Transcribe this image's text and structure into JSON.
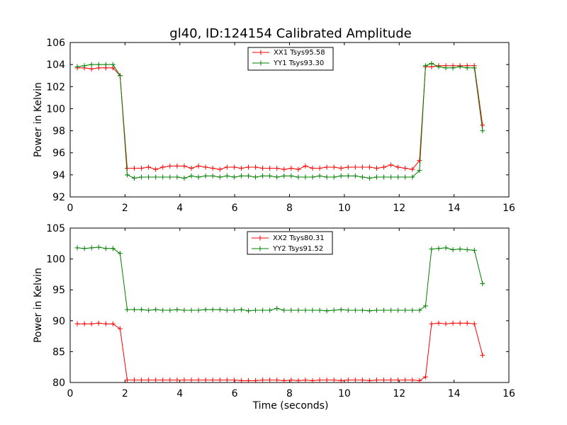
{
  "title": "gl40, ID:124154 Calibrated Amplitude",
  "colors": {
    "red": "#ff0000",
    "green": "#008000"
  },
  "chart_data": [
    {
      "type": "line",
      "title": "gl40, ID:124154 Calibrated Amplitude",
      "xlabel": "",
      "ylabel": "Power in Kelvin",
      "xlim": [
        0,
        16
      ],
      "ylim": [
        92,
        106
      ],
      "xticks": [
        0,
        2,
        4,
        6,
        8,
        10,
        12,
        14,
        16
      ],
      "yticks": [
        92,
        94,
        96,
        98,
        100,
        102,
        104,
        106
      ],
      "grid": false,
      "legend": "top-center",
      "x": [
        0.26,
        0.52,
        0.78,
        1.04,
        1.3,
        1.56,
        1.82,
        2.08,
        2.34,
        2.6,
        2.86,
        3.12,
        3.38,
        3.64,
        3.9,
        4.16,
        4.42,
        4.68,
        4.94,
        5.2,
        5.46,
        5.72,
        5.98,
        6.24,
        6.5,
        6.76,
        7.02,
        7.28,
        7.54,
        7.8,
        8.06,
        8.32,
        8.58,
        8.84,
        9.1,
        9.36,
        9.62,
        9.88,
        10.14,
        10.4,
        10.66,
        10.92,
        11.18,
        11.44,
        11.7,
        11.96,
        12.22,
        12.48,
        12.74,
        12.96,
        13.18,
        13.44,
        13.7,
        13.96,
        14.22,
        14.48,
        14.74,
        15.04
      ],
      "series": [
        {
          "name": "XX1 Tsys95.58",
          "color": "#ff0000",
          "values": [
            103.7,
            103.7,
            103.6,
            103.7,
            103.7,
            103.7,
            103.0,
            94.6,
            94.6,
            94.6,
            94.7,
            94.5,
            94.7,
            94.8,
            94.8,
            94.8,
            94.6,
            94.8,
            94.7,
            94.6,
            94.5,
            94.7,
            94.7,
            94.6,
            94.7,
            94.7,
            94.6,
            94.6,
            94.6,
            94.5,
            94.6,
            94.5,
            94.8,
            94.6,
            94.6,
            94.7,
            94.7,
            94.6,
            94.7,
            94.7,
            94.7,
            94.7,
            94.6,
            94.7,
            94.9,
            94.7,
            94.6,
            94.5,
            95.3,
            103.8,
            103.8,
            103.9,
            103.9,
            103.9,
            103.9,
            103.9,
            103.9,
            98.5
          ]
        },
        {
          "name": "YY1 Tsys93.30",
          "color": "#008000",
          "values": [
            103.8,
            103.9,
            104.0,
            104.0,
            104.0,
            104.0,
            103.0,
            94.0,
            93.7,
            93.8,
            93.8,
            93.8,
            93.8,
            93.8,
            93.8,
            93.7,
            93.9,
            93.8,
            93.9,
            93.9,
            93.8,
            93.9,
            93.8,
            93.9,
            93.9,
            93.8,
            93.9,
            93.9,
            93.8,
            93.9,
            93.9,
            93.8,
            93.8,
            93.8,
            93.9,
            93.8,
            93.8,
            93.9,
            93.9,
            93.9,
            93.8,
            93.7,
            93.8,
            93.8,
            93.8,
            93.8,
            93.8,
            93.8,
            94.4,
            103.9,
            104.1,
            103.8,
            103.7,
            103.7,
            103.8,
            103.7,
            103.7,
            98.0
          ]
        }
      ]
    },
    {
      "type": "line",
      "title": "",
      "xlabel": "Time (seconds)",
      "ylabel": "Power in Kelvin",
      "xlim": [
        0,
        16
      ],
      "ylim": [
        80,
        105
      ],
      "xticks": [
        0,
        2,
        4,
        6,
        8,
        10,
        12,
        14,
        16
      ],
      "yticks": [
        80,
        85,
        90,
        95,
        100,
        105
      ],
      "grid": false,
      "legend": "top-center",
      "x": [
        0.26,
        0.52,
        0.78,
        1.04,
        1.3,
        1.56,
        1.82,
        2.08,
        2.34,
        2.6,
        2.86,
        3.12,
        3.38,
        3.64,
        3.9,
        4.16,
        4.42,
        4.68,
        4.94,
        5.2,
        5.46,
        5.72,
        5.98,
        6.24,
        6.5,
        6.76,
        7.02,
        7.28,
        7.54,
        7.8,
        8.06,
        8.32,
        8.58,
        8.84,
        9.1,
        9.36,
        9.62,
        9.88,
        10.14,
        10.4,
        10.66,
        10.92,
        11.18,
        11.44,
        11.7,
        11.96,
        12.22,
        12.48,
        12.74,
        12.96,
        13.18,
        13.44,
        13.7,
        13.96,
        14.22,
        14.48,
        14.74,
        15.04
      ],
      "series": [
        {
          "name": "XX2 Tsys80.31",
          "color": "#ff0000",
          "values": [
            89.5,
            89.5,
            89.5,
            89.6,
            89.5,
            89.5,
            88.7,
            80.4,
            80.4,
            80.4,
            80.4,
            80.4,
            80.4,
            80.4,
            80.4,
            80.4,
            80.4,
            80.4,
            80.4,
            80.4,
            80.4,
            80.4,
            80.4,
            80.3,
            80.3,
            80.3,
            80.4,
            80.4,
            80.4,
            80.3,
            80.4,
            80.3,
            80.4,
            80.3,
            80.4,
            80.4,
            80.4,
            80.3,
            80.4,
            80.4,
            80.4,
            80.3,
            80.4,
            80.4,
            80.4,
            80.4,
            80.4,
            80.4,
            80.3,
            80.9,
            89.5,
            89.6,
            89.5,
            89.6,
            89.6,
            89.6,
            89.5,
            84.4
          ]
        },
        {
          "name": "YY2 Tsys91.52",
          "color": "#008000",
          "values": [
            101.8,
            101.7,
            101.8,
            101.9,
            101.7,
            101.7,
            100.9,
            91.8,
            91.8,
            91.8,
            91.7,
            91.8,
            91.7,
            91.7,
            91.8,
            91.7,
            91.7,
            91.7,
            91.8,
            91.8,
            91.8,
            91.7,
            91.7,
            91.8,
            91.6,
            91.7,
            91.7,
            91.7,
            92.0,
            91.7,
            91.7,
            91.7,
            91.7,
            91.7,
            91.7,
            91.6,
            91.7,
            91.8,
            91.7,
            91.7,
            91.7,
            91.6,
            91.7,
            91.7,
            91.7,
            91.7,
            91.7,
            91.7,
            91.7,
            92.4,
            101.6,
            101.7,
            101.8,
            101.5,
            101.6,
            101.5,
            101.4,
            96.0
          ]
        }
      ]
    }
  ]
}
